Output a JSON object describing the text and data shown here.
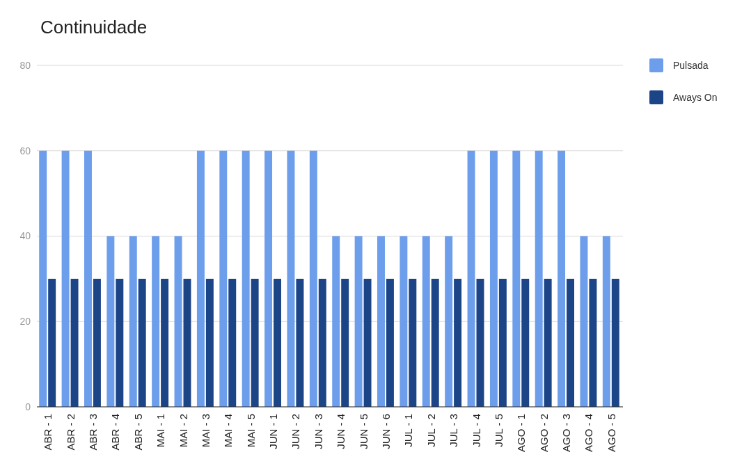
{
  "chart_data": {
    "type": "bar",
    "title": "Continuidade",
    "categories": [
      "ABR - 1",
      "ABR - 2",
      "ABR - 3",
      "ABR - 4",
      "ABR - 5",
      "MAI - 1",
      "MAI - 2",
      "MAI - 3",
      "MAI - 4",
      "MAI - 5",
      "JUN - 1",
      "JUN - 2",
      "JUN - 3",
      "JUN - 4",
      "JUN - 5",
      "JUN - 6",
      "JUL - 1",
      "JUL - 2",
      "JUL - 3",
      "JUL - 4",
      "JUL - 5",
      "AGO - 1",
      "AGO - 2",
      "AGO - 3",
      "AGO - 4",
      "AGO - 5"
    ],
    "series": [
      {
        "name": "Pulsada",
        "color": "#6d9eeb",
        "values": [
          60,
          60,
          60,
          40,
          40,
          40,
          40,
          60,
          60,
          60,
          60,
          60,
          60,
          40,
          40,
          40,
          40,
          40,
          40,
          60,
          60,
          60,
          60,
          60,
          40,
          40
        ]
      },
      {
        "name": "Aways On",
        "color": "#1c4587",
        "values": [
          30,
          30,
          30,
          30,
          30,
          30,
          30,
          30,
          30,
          30,
          30,
          30,
          30,
          30,
          30,
          30,
          30,
          30,
          30,
          30,
          30,
          30,
          30,
          30,
          30,
          30
        ]
      }
    ],
    "ylim": [
      0,
      80
    ],
    "yticks": [
      0,
      20,
      40,
      60,
      80
    ],
    "grid": "y",
    "legend": "top right"
  }
}
